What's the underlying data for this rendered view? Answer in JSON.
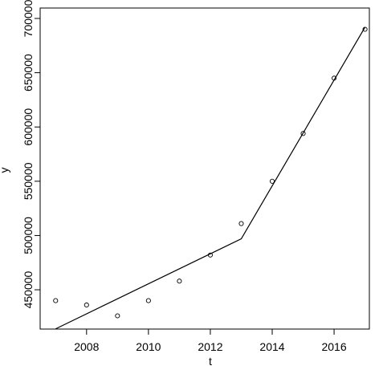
{
  "chart_data": {
    "type": "scatter",
    "xlabel": "t",
    "ylabel": "y",
    "xlim": [
      2006.5,
      2017.14
    ],
    "ylim": [
      413800,
      709600
    ],
    "xticks": [
      2008,
      2010,
      2012,
      2014,
      2016
    ],
    "yticks": [
      450000,
      500000,
      550000,
      600000,
      650000,
      700000
    ],
    "series": [
      {
        "mode": "points",
        "color": "#000000",
        "x": [
          2007,
          2008,
          2009,
          2010,
          2011,
          2012,
          2013,
          2014,
          2015,
          2016,
          2017
        ],
        "values": [
          440000,
          436000,
          426000,
          440000,
          458000,
          482000,
          511000,
          550000,
          594000,
          645000,
          690000
        ]
      },
      {
        "mode": "line",
        "color": "#000000",
        "x": [
          2007,
          2013,
          2017
        ],
        "values": [
          414000,
          497000,
          692000
        ]
      }
    ]
  }
}
